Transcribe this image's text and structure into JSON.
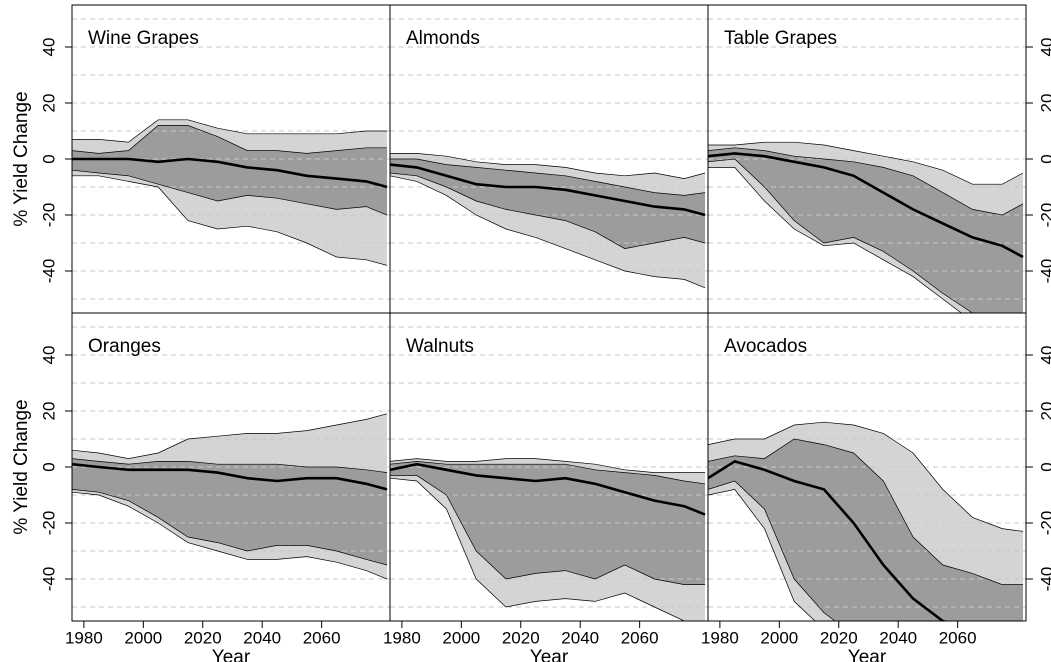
{
  "chart_data": [
    {
      "type": "band",
      "title": "Wine Grapes",
      "ylabel": "% Yield Change",
      "x": [
        1976,
        1985,
        1995,
        2005,
        2015,
        2025,
        2035,
        2045,
        2055,
        2065,
        2075,
        2082
      ],
      "median": [
        0,
        0,
        0,
        -1,
        0,
        -1,
        -3,
        -4,
        -6,
        -7,
        -8,
        -10
      ],
      "inner_high": [
        3,
        2,
        3,
        12,
        12,
        8,
        3,
        3,
        2,
        3,
        4,
        4
      ],
      "outer_high": [
        7,
        7,
        6,
        14,
        14,
        11,
        9,
        9,
        9,
        9,
        10,
        10
      ],
      "inner_low": [
        -4,
        -5,
        -6,
        -9,
        -12,
        -15,
        -13,
        -14,
        -16,
        -18,
        -17,
        -20
      ],
      "outer_low": [
        -6,
        -6,
        -8,
        -10,
        -22,
        -25,
        -24,
        -26,
        -30,
        -35,
        -36,
        -38
      ],
      "xlim": [
        1976,
        2083
      ],
      "ylim": [
        -55,
        55
      ],
      "yticks": [
        -40,
        -20,
        0,
        20,
        40
      ],
      "ygrid": [
        -50,
        -40,
        -30,
        -20,
        -10,
        0,
        10,
        20,
        30,
        40,
        50
      ]
    },
    {
      "type": "band",
      "title": "Almonds",
      "x": [
        1976,
        1985,
        1995,
        2005,
        2015,
        2025,
        2035,
        2045,
        2055,
        2065,
        2075,
        2082
      ],
      "median": [
        -2,
        -3,
        -6,
        -9,
        -10,
        -10,
        -11,
        -13,
        -15,
        -17,
        -18,
        -20
      ],
      "inner_high": [
        0,
        0,
        -2,
        -3,
        -4,
        -5,
        -6,
        -8,
        -10,
        -12,
        -13,
        -12
      ],
      "outer_high": [
        2,
        2,
        1,
        -1,
        -2,
        -2,
        -3,
        -5,
        -6,
        -5,
        -7,
        -5
      ],
      "inner_low": [
        -5,
        -6,
        -10,
        -15,
        -18,
        -20,
        -22,
        -26,
        -32,
        -30,
        -28,
        -30
      ],
      "outer_low": [
        -6,
        -8,
        -13,
        -20,
        -25,
        -28,
        -32,
        -36,
        -40,
        -42,
        -43,
        -46
      ],
      "xlim": [
        1976,
        2083
      ],
      "ylim": [
        -55,
        55
      ],
      "ygrid": [
        -50,
        -40,
        -30,
        -20,
        -10,
        0,
        10,
        20,
        30,
        40,
        50
      ]
    },
    {
      "type": "band",
      "title": "Table Grapes",
      "x": [
        1976,
        1985,
        1995,
        2005,
        2015,
        2025,
        2035,
        2045,
        2055,
        2065,
        2075,
        2082
      ],
      "median": [
        1,
        2,
        1,
        -1,
        -3,
        -6,
        -12,
        -18,
        -23,
        -28,
        -31,
        -35
      ],
      "inner_high": [
        3,
        4,
        3,
        1,
        0,
        -1,
        -3,
        -6,
        -12,
        -18,
        -20,
        -16
      ],
      "outer_high": [
        5,
        5,
        6,
        6,
        5,
        3,
        1,
        -1,
        -4,
        -9,
        -9,
        -5
      ],
      "inner_low": [
        -1,
        0,
        -10,
        -22,
        -30,
        -28,
        -33,
        -40,
        -48,
        -55,
        -60,
        -60
      ],
      "outer_low": [
        -3,
        -3,
        -15,
        -25,
        -31,
        -30,
        -36,
        -42,
        -50,
        -58,
        -65,
        -65
      ],
      "xlim": [
        1976,
        2083
      ],
      "ylim": [
        -55,
        55
      ],
      "yticks": [
        -40,
        -20,
        0,
        20,
        40
      ],
      "ygrid": [
        -50,
        -40,
        -30,
        -20,
        -10,
        0,
        10,
        20,
        30,
        40,
        50
      ]
    },
    {
      "type": "band",
      "title": "Oranges",
      "ylabel": "% Yield Change",
      "xlabel": "Year",
      "x": [
        1976,
        1985,
        1995,
        2005,
        2015,
        2025,
        2035,
        2045,
        2055,
        2065,
        2075,
        2082
      ],
      "median": [
        1,
        0,
        -1,
        -1,
        -1,
        -2,
        -4,
        -5,
        -4,
        -4,
        -6,
        -8
      ],
      "inner_high": [
        3,
        2,
        1,
        2,
        2,
        1,
        1,
        1,
        0,
        0,
        -1,
        -2
      ],
      "outer_high": [
        6,
        5,
        3,
        5,
        10,
        11,
        12,
        12,
        13,
        15,
        17,
        19
      ],
      "inner_low": [
        -8,
        -9,
        -12,
        -18,
        -25,
        -27,
        -30,
        -28,
        -28,
        -30,
        -33,
        -35
      ],
      "outer_low": [
        -9,
        -10,
        -14,
        -20,
        -27,
        -30,
        -33,
        -33,
        -32,
        -34,
        -37,
        -40
      ],
      "xlim": [
        1976,
        2083
      ],
      "ylim": [
        -55,
        55
      ],
      "xticks": [
        1980,
        2000,
        2020,
        2040,
        2060
      ],
      "yticks": [
        -40,
        -20,
        0,
        20,
        40
      ],
      "ygrid": [
        -50,
        -40,
        -30,
        -20,
        -10,
        0,
        10,
        20,
        30,
        40,
        50
      ]
    },
    {
      "type": "band",
      "title": "Walnuts",
      "xlabel": "Year",
      "x": [
        1976,
        1985,
        1995,
        2005,
        2015,
        2025,
        2035,
        2045,
        2055,
        2065,
        2075,
        2082
      ],
      "median": [
        -1,
        1,
        -1,
        -3,
        -4,
        -5,
        -4,
        -6,
        -9,
        -12,
        -14,
        -17
      ],
      "inner_high": [
        1,
        2,
        1,
        1,
        1,
        1,
        1,
        -1,
        -2,
        -3,
        -5,
        -6
      ],
      "outer_high": [
        2,
        3,
        2,
        2,
        3,
        3,
        2,
        1,
        -1,
        -2,
        -2,
        -2
      ],
      "inner_low": [
        -3,
        -3,
        -10,
        -30,
        -40,
        -38,
        -37,
        -40,
        -35,
        -40,
        -42,
        -42
      ],
      "outer_low": [
        -4,
        -5,
        -15,
        -40,
        -50,
        -48,
        -47,
        -48,
        -45,
        -50,
        -55,
        -58
      ],
      "xlim": [
        1976,
        2083
      ],
      "ylim": [
        -55,
        55
      ],
      "xticks": [
        1980,
        2000,
        2020,
        2040,
        2060
      ],
      "ygrid": [
        -50,
        -40,
        -30,
        -20,
        -10,
        0,
        10,
        20,
        30,
        40,
        50
      ]
    },
    {
      "type": "band",
      "title": "Avocados",
      "xlabel": "Year",
      "x": [
        1976,
        1985,
        1995,
        2005,
        2015,
        2025,
        2035,
        2045,
        2055,
        2065,
        2075,
        2082
      ],
      "median": [
        -4,
        2,
        -1,
        -5,
        -8,
        -20,
        -35,
        -47,
        -55,
        -58,
        -60,
        -62
      ],
      "inner_high": [
        2,
        4,
        3,
        10,
        8,
        5,
        -5,
        -25,
        -35,
        -38,
        -42,
        -42
      ],
      "outer_high": [
        8,
        10,
        10,
        15,
        16,
        15,
        12,
        5,
        -8,
        -18,
        -22,
        -23
      ],
      "inner_low": [
        -8,
        -5,
        -15,
        -40,
        -52,
        -60,
        -65,
        -65,
        -65,
        -65,
        -65,
        -65
      ],
      "outer_low": [
        -10,
        -8,
        -22,
        -48,
        -58,
        -65,
        -70,
        -70,
        -70,
        -70,
        -70,
        -70
      ],
      "xlim": [
        1976,
        2083
      ],
      "ylim": [
        -55,
        55
      ],
      "xticks": [
        1980,
        2000,
        2020,
        2040,
        2060
      ],
      "yticks": [
        -40,
        -20,
        0,
        20,
        40
      ],
      "ygrid": [
        -50,
        -40,
        -30,
        -20,
        -10,
        0,
        10,
        20,
        30,
        40,
        50
      ]
    }
  ]
}
